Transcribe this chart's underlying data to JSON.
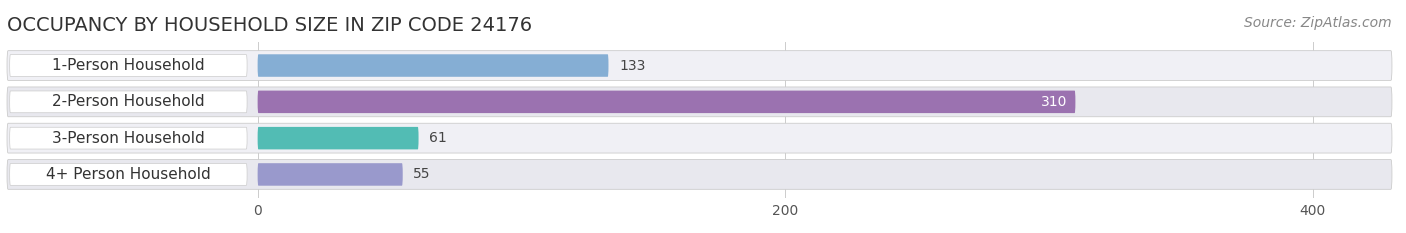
{
  "title": "OCCUPANCY BY HOUSEHOLD SIZE IN ZIP CODE 24176",
  "source": "Source: ZipAtlas.com",
  "categories": [
    "1-Person Household",
    "2-Person Household",
    "3-Person Household",
    "4+ Person Household"
  ],
  "values": [
    133,
    310,
    61,
    55
  ],
  "bar_colors": [
    "#85aed4",
    "#9b72b0",
    "#52bcb4",
    "#9999cc"
  ],
  "bar_label_colors": [
    "#444444",
    "#ffffff",
    "#444444",
    "#444444"
  ],
  "xlim": [
    -95,
    430
  ],
  "xticks": [
    0,
    200,
    400
  ],
  "background_color": "#ffffff",
  "row_bg_color_odd": "#f0f0f5",
  "row_bg_color_even": "#e8e8ee",
  "title_fontsize": 14,
  "source_fontsize": 10,
  "label_fontsize": 11,
  "value_fontsize": 10,
  "tick_fontsize": 10,
  "bar_height": 0.62
}
